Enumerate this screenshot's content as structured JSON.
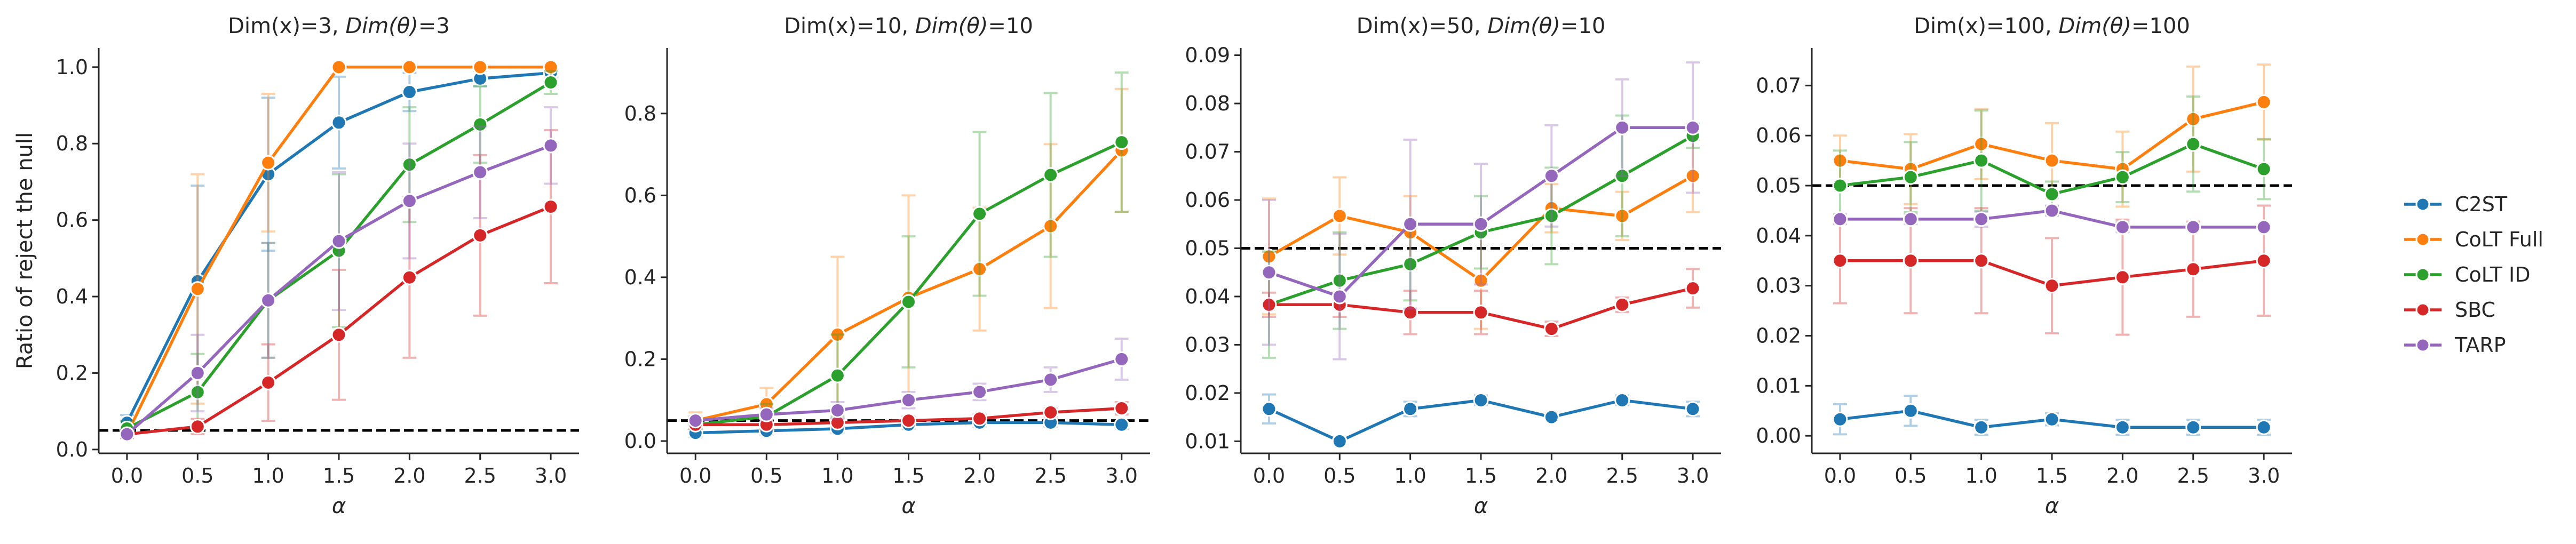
{
  "colors": {
    "C2ST": "#1f77b4",
    "CoLT Full": "#ff7f0e",
    "CoLT ID": "#2ca02c",
    "SBC": "#d62728",
    "TARP": "#9467bd"
  },
  "legend": {
    "items": [
      "C2ST",
      "CoLT Full",
      "CoLT ID",
      "SBC",
      "TARP"
    ]
  },
  "chart_data": [
    {
      "type": "line",
      "title_plain": "Dim(x)=3, ",
      "title_italic": "Dim(θ)",
      "title_tail": "=3",
      "xlabel": "α",
      "ylabel": "Ratio of reject the null",
      "x": [
        0.0,
        0.5,
        1.0,
        1.5,
        2.0,
        2.5,
        3.0
      ],
      "xticks": [
        "0.0",
        "0.5",
        "1.0",
        "1.5",
        "2.0",
        "2.5",
        "3.0"
      ],
      "ylim": [
        -0.01,
        1.05
      ],
      "yticks": [
        0.0,
        0.2,
        0.4,
        0.6,
        0.8,
        1.0
      ],
      "ytick_labels": [
        "0.0",
        "0.2",
        "0.4",
        "0.6",
        "0.8",
        "1.0"
      ],
      "reference_line": 0.05,
      "series": [
        {
          "name": "C2ST",
          "values": [
            0.07,
            0.44,
            0.72,
            0.855,
            0.935,
            0.97,
            0.985
          ],
          "err": [
            0.02,
            0.25,
            0.2,
            0.12,
            0.05,
            0.02,
            0.01
          ]
        },
        {
          "name": "CoLT Full",
          "values": [
            0.04,
            0.42,
            0.75,
            1.0,
            1.0,
            1.0,
            1.0
          ],
          "err": [
            0.01,
            0.3,
            0.18,
            0.0,
            0.0,
            0.0,
            0.0
          ]
        },
        {
          "name": "CoLT ID",
          "values": [
            0.055,
            0.15,
            0.39,
            0.52,
            0.745,
            0.85,
            0.96
          ],
          "err": [
            0.02,
            0.1,
            0.15,
            0.2,
            0.15,
            0.1,
            0.03
          ]
        },
        {
          "name": "SBC",
          "values": [
            0.04,
            0.06,
            0.175,
            0.3,
            0.45,
            0.56,
            0.635
          ],
          "err": [
            0.01,
            0.02,
            0.1,
            0.17,
            0.21,
            0.21,
            0.2
          ]
        },
        {
          "name": "TARP",
          "values": [
            0.04,
            0.2,
            0.39,
            0.545,
            0.65,
            0.725,
            0.795
          ],
          "err": [
            0.01,
            0.1,
            0.15,
            0.18,
            0.15,
            0.12,
            0.1
          ]
        }
      ]
    },
    {
      "type": "line",
      "title_plain": "Dim(x)=10, ",
      "title_italic": "Dim(θ)",
      "title_tail": "=10",
      "xlabel": "α",
      "ylabel": "",
      "x": [
        0.0,
        0.5,
        1.0,
        1.5,
        2.0,
        2.5,
        3.0
      ],
      "xticks": [
        "0.0",
        "0.5",
        "1.0",
        "1.5",
        "2.0",
        "2.5",
        "3.0"
      ],
      "ylim": [
        -0.03,
        0.96
      ],
      "yticks": [
        0.0,
        0.2,
        0.4,
        0.6,
        0.8
      ],
      "ytick_labels": [
        "0.0",
        "0.2",
        "0.4",
        "0.6",
        "0.8"
      ],
      "reference_line": 0.05,
      "series": [
        {
          "name": "C2ST",
          "values": [
            0.02,
            0.025,
            0.03,
            0.04,
            0.045,
            0.045,
            0.04
          ],
          "err": [
            0.01,
            0.01,
            0.01,
            0.01,
            0.01,
            0.01,
            0.01
          ]
        },
        {
          "name": "CoLT Full",
          "values": [
            0.05,
            0.09,
            0.26,
            0.35,
            0.42,
            0.525,
            0.71
          ],
          "err": [
            0.02,
            0.04,
            0.19,
            0.25,
            0.15,
            0.2,
            0.15
          ]
        },
        {
          "name": "CoLT ID",
          "values": [
            0.04,
            0.06,
            0.16,
            0.34,
            0.555,
            0.65,
            0.73
          ],
          "err": [
            0.01,
            0.03,
            0.1,
            0.16,
            0.2,
            0.2,
            0.17
          ]
        },
        {
          "name": "SBC",
          "values": [
            0.04,
            0.04,
            0.045,
            0.05,
            0.055,
            0.07,
            0.08
          ],
          "err": [
            0.01,
            0.01,
            0.01,
            0.01,
            0.01,
            0.01,
            0.015
          ]
        },
        {
          "name": "TARP",
          "values": [
            0.05,
            0.065,
            0.075,
            0.1,
            0.12,
            0.15,
            0.2
          ],
          "err": [
            0.01,
            0.015,
            0.02,
            0.02,
            0.02,
            0.03,
            0.05
          ]
        }
      ]
    },
    {
      "type": "line",
      "title_plain": "Dim(x)=50, ",
      "title_italic": "Dim(θ)",
      "title_tail": "=10",
      "xlabel": "α",
      "ylabel": "",
      "x": [
        0.0,
        0.5,
        1.0,
        1.5,
        2.0,
        2.5,
        3.0
      ],
      "xticks": [
        "0.0",
        "0.5",
        "1.0",
        "1.5",
        "2.0",
        "2.5",
        "3.0"
      ],
      "ylim": [
        0.0075,
        0.0915
      ],
      "yticks": [
        0.01,
        0.02,
        0.03,
        0.04,
        0.05,
        0.06,
        0.07,
        0.08,
        0.09
      ],
      "ytick_labels": [
        "0.01",
        "0.02",
        "0.03",
        "0.04",
        "0.05",
        "0.06",
        "0.07",
        "0.08",
        "0.09"
      ],
      "reference_line": 0.05,
      "series": [
        {
          "name": "C2ST",
          "values": [
            0.0167,
            0.01,
            0.0167,
            0.0185,
            0.015,
            0.0185,
            0.0167
          ],
          "err": [
            0.003,
            0.0,
            0.0015,
            0.001,
            0.0,
            0.001,
            0.0015
          ]
        },
        {
          "name": "CoLT Full",
          "values": [
            0.0483,
            0.0567,
            0.0533,
            0.0433,
            0.0583,
            0.0567,
            0.065
          ],
          "err": [
            0.012,
            0.008,
            0.0075,
            0.01,
            0.005,
            0.005,
            0.0075
          ]
        },
        {
          "name": "CoLT ID",
          "values": [
            0.0383,
            0.0433,
            0.0467,
            0.0533,
            0.0567,
            0.065,
            0.0733
          ],
          "err": [
            0.011,
            0.01,
            0.0075,
            0.0075,
            0.01,
            0.0125,
            0.0025
          ]
        },
        {
          "name": "SBC",
          "values": [
            0.0383,
            0.0383,
            0.0367,
            0.0367,
            0.0333,
            0.0383,
            0.0417
          ],
          "err": [
            0.0025,
            0.0025,
            0.0045,
            0.0045,
            0.0015,
            0.0015,
            0.004
          ]
        },
        {
          "name": "TARP",
          "values": [
            0.045,
            0.04,
            0.055,
            0.055,
            0.065,
            0.075,
            0.075
          ],
          "err": [
            0.015,
            0.013,
            0.0175,
            0.0125,
            0.0105,
            0.01,
            0.0135
          ]
        }
      ]
    },
    {
      "type": "line",
      "title_plain": "Dim(x)=100, ",
      "title_italic": "Dim(θ)",
      "title_tail": "=100",
      "xlabel": "α",
      "ylabel": "",
      "x": [
        0.0,
        0.5,
        1.0,
        1.5,
        2.0,
        2.5,
        3.0
      ],
      "xticks": [
        "0.0",
        "0.5",
        "1.0",
        "1.5",
        "2.0",
        "2.5",
        "3.0"
      ],
      "ylim": [
        -0.0035,
        0.0775
      ],
      "yticks": [
        0.0,
        0.01,
        0.02,
        0.03,
        0.04,
        0.05,
        0.06,
        0.07
      ],
      "ytick_labels": [
        "0.00",
        "0.01",
        "0.02",
        "0.03",
        "0.04",
        "0.05",
        "0.06",
        "0.07"
      ],
      "reference_line": 0.05,
      "series": [
        {
          "name": "C2ST",
          "values": [
            0.0033,
            0.005,
            0.0017,
            0.0033,
            0.0017,
            0.0017,
            0.0017
          ],
          "err": [
            0.003,
            0.003,
            0.0015,
            0.0012,
            0.0015,
            0.0015,
            0.0015
          ]
        },
        {
          "name": "CoLT Full",
          "values": [
            0.055,
            0.0533,
            0.0583,
            0.055,
            0.0533,
            0.0633,
            0.0667
          ],
          "err": [
            0.005,
            0.007,
            0.007,
            0.0075,
            0.0075,
            0.0105,
            0.0075
          ]
        },
        {
          "name": "CoLT ID",
          "values": [
            0.05,
            0.0517,
            0.055,
            0.0483,
            0.0517,
            0.0583,
            0.0533
          ],
          "err": [
            0.007,
            0.007,
            0.01,
            0.0025,
            0.005,
            0.0095,
            0.006
          ]
        },
        {
          "name": "SBC",
          "values": [
            0.035,
            0.035,
            0.035,
            0.03,
            0.0317,
            0.0333,
            0.035
          ],
          "err": [
            0.0085,
            0.0105,
            0.0105,
            0.0095,
            0.0115,
            0.0095,
            0.011
          ]
        },
        {
          "name": "TARP",
          "values": [
            0.0433,
            0.0433,
            0.0433,
            0.045,
            0.0417,
            0.0417,
            0.0417
          ],
          "err": [
            0.001,
            0.001,
            0.0015,
            0.001,
            0.001,
            0.0,
            0.0
          ]
        }
      ]
    }
  ]
}
